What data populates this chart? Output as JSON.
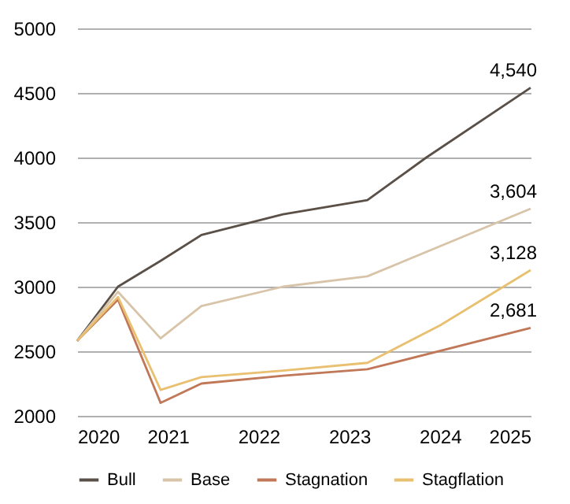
{
  "chart_data": {
    "type": "line",
    "xlim": [
      2020,
      2025
    ],
    "xticks": [
      2020,
      2021,
      2022,
      2023,
      2024,
      2025
    ],
    "ylim": [
      2000,
      5000
    ],
    "yticks": [
      2000,
      2500,
      3000,
      3500,
      4000,
      4500,
      5000
    ],
    "grid": "y",
    "legend": "bottom",
    "line_style": "solid",
    "marker": "none",
    "series": [
      {
        "name": "Bull",
        "color": "#5a5048",
        "x": [
          2020,
          2020.45,
          2020.92,
          2021.37,
          2022.27,
          2023.2,
          2023.85,
          2025
        ],
        "values": [
          2580,
          3000,
          3200,
          3400,
          3560,
          3670,
          4000,
          4540
        ],
        "value_labels": [
          null,
          null,
          null,
          null,
          null,
          null,
          null,
          "4,540"
        ]
      },
      {
        "name": "Base",
        "color": "#d8c4a8",
        "x": [
          2020,
          2020.45,
          2020.92,
          2021.37,
          2022.27,
          2023.2,
          2025
        ],
        "values": [
          2580,
          2960,
          2600,
          2850,
          3000,
          3080,
          3604
        ],
        "value_labels": [
          null,
          null,
          null,
          null,
          null,
          null,
          "3,604"
        ]
      },
      {
        "name": "Stagnation",
        "color": "#c07858",
        "x": [
          2020,
          2020.45,
          2020.92,
          2021.37,
          2022.27,
          2023.2,
          2025
        ],
        "values": [
          2580,
          2900,
          2100,
          2250,
          2310,
          2360,
          2681
        ],
        "value_labels": [
          null,
          null,
          null,
          null,
          null,
          null,
          "2,681"
        ]
      },
      {
        "name": "Stagflation",
        "color": "#e8c070",
        "x": [
          2020,
          2020.45,
          2020.92,
          2021.37,
          2022.27,
          2023.2,
          2024.0,
          2025
        ],
        "values": [
          2580,
          2920,
          2200,
          2300,
          2350,
          2410,
          2700,
          3128
        ],
        "value_labels": [
          null,
          null,
          null,
          null,
          null,
          null,
          null,
          "3,128"
        ]
      }
    ]
  }
}
